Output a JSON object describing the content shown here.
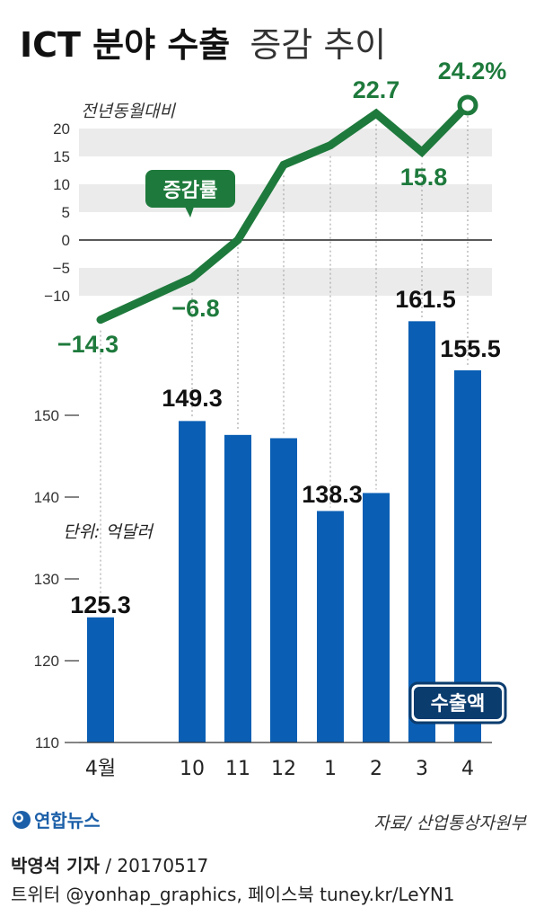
{
  "title": {
    "bold": "ICT 분야 수출",
    "light": "증감 추이"
  },
  "chart_data": [
    {
      "type": "line",
      "name": "증감률",
      "ylabel": "전년동월대비",
      "ylim": [
        -15,
        20
      ],
      "yticks": [
        20,
        15,
        10,
        5,
        0,
        -5,
        -10
      ],
      "ytick_labels": [
        "20",
        "15",
        "10",
        "5",
        "0",
        "−5",
        "−10"
      ],
      "categories": [
        "4월",
        "10",
        "11",
        "12",
        "1",
        "2",
        "3",
        "4"
      ],
      "values": [
        -14.3,
        -6.8,
        0,
        13.5,
        17,
        22.7,
        15.8,
        24.2
      ],
      "data_labels": [
        "−14.3",
        "−6.8",
        "",
        "",
        "",
        "22.7",
        "15.8",
        "24.2%"
      ],
      "legend_label": "증감률",
      "color": "#1e7a3c"
    },
    {
      "type": "bar",
      "name": "수출액",
      "unit_label": "단위: 억달러",
      "ylim": [
        110,
        165
      ],
      "yticks": [
        150,
        140,
        130,
        120,
        110
      ],
      "categories": [
        "4월",
        "10",
        "11",
        "12",
        "1",
        "2",
        "3",
        "4"
      ],
      "values": [
        125.3,
        149.3,
        147.6,
        147.2,
        138.3,
        140.5,
        161.5,
        155.5
      ],
      "data_labels": [
        "125.3",
        "149.3",
        "",
        "",
        "138.3",
        "",
        "161.5",
        "155.5"
      ],
      "legend_label": "수출액",
      "color": "#0a5fb4"
    }
  ],
  "source": "자료/ 산업통상자원부",
  "logo_text": "연합뉴스",
  "byline": {
    "name": "박영석 기자",
    "date": " / 20170517"
  },
  "social": "트위터 @yonhap_graphics, 페이스북 tuney.kr/LeYN1",
  "colors": {
    "bar": "#0a5fb4",
    "line": "#1e7a3c",
    "band": "#ebebeb",
    "label_box_line": "#1e7a3c",
    "label_box_bar": "#0b3c6e"
  }
}
